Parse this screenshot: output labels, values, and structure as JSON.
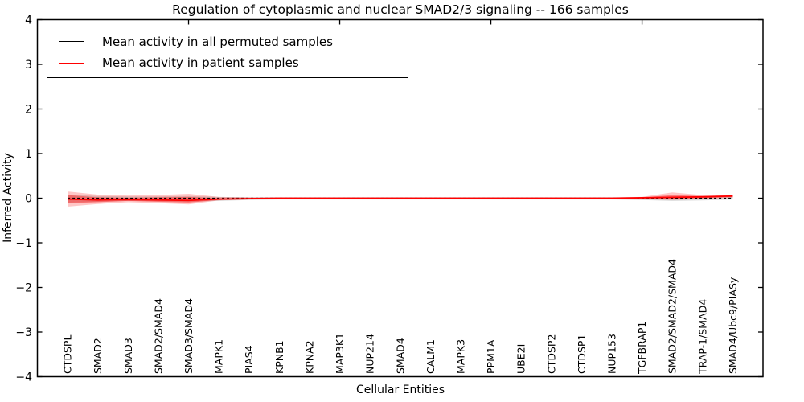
{
  "legend": {
    "items": [
      {
        "label": "Mean activity in all permuted samples",
        "color": "#000000"
      },
      {
        "label": "Mean activity in patient samples",
        "color": "#ff0000"
      }
    ]
  },
  "chart_data": {
    "type": "line",
    "title": "Regulation of cytoplasmic and nuclear SMAD2/3 signaling -- 166 samples",
    "xlabel": "Cellular Entities",
    "ylabel": "Inferred Activity",
    "xlim": [
      0,
      24
    ],
    "ylim": [
      -4,
      4
    ],
    "yticks": [
      4,
      3,
      2,
      1,
      0,
      -1,
      -2,
      -3,
      -4
    ],
    "ytick_labels": [
      "4",
      "3",
      "2",
      "1",
      "0",
      "−1",
      "−2",
      "−3",
      "−4"
    ],
    "xticks_top": [
      5,
      10,
      15,
      20
    ],
    "grid": false,
    "legend_position": "upper left",
    "categories": [
      "CTDSPL",
      "SMAD2",
      "SMAD3",
      "SMAD2/SMAD4",
      "SMAD3/SMAD4",
      "MAPK1",
      "PIAS4",
      "KPNB1",
      "KPNA2",
      "MAP3K1",
      "NUP214",
      "SMAD4",
      "CALM1",
      "MAPK3",
      "PPM1A",
      "UBE2I",
      "CTDSP2",
      "CTDSP1",
      "NUP153",
      "TGFBRAP1",
      "SMAD2/SMAD2/SMAD4",
      "TRAP-1/SMAD4",
      "SMAD4/Ubc9/PIASy"
    ],
    "series": [
      {
        "name": "Mean activity in all permuted samples",
        "color": "#000000",
        "style": "dashed",
        "values": [
          0,
          0,
          0,
          0,
          0,
          0,
          0,
          0,
          0,
          0,
          0,
          0,
          0,
          0,
          0,
          0,
          0,
          0,
          0,
          0,
          0,
          0,
          0
        ]
      },
      {
        "name": "Mean activity in patient samples",
        "color": "#ff0000",
        "style": "solid",
        "values": [
          -0.02,
          -0.04,
          -0.03,
          -0.04,
          -0.05,
          -0.02,
          -0.01,
          0,
          0,
          0,
          0,
          0,
          0,
          0,
          0,
          0,
          0,
          0,
          0,
          0.01,
          0.02,
          0.03,
          0.05
        ]
      }
    ],
    "bands": [
      {
        "name": "permuted-samples-spread",
        "color": "#999999",
        "opacity": 0.35,
        "upper": [
          0.08,
          0.05,
          0.04,
          0.04,
          0.05,
          0.03,
          0.02,
          0.02,
          0.02,
          0.02,
          0.02,
          0.02,
          0.02,
          0.02,
          0.02,
          0.02,
          0.02,
          0.02,
          0.02,
          0.02,
          0.04,
          0.04,
          0.06
        ],
        "lower": [
          -0.1,
          -0.08,
          -0.06,
          -0.07,
          -0.08,
          -0.06,
          -0.04,
          -0.03,
          -0.03,
          -0.03,
          -0.03,
          -0.03,
          -0.03,
          -0.03,
          -0.03,
          -0.03,
          -0.03,
          -0.03,
          -0.03,
          -0.04,
          -0.06,
          -0.05,
          -0.03
        ]
      },
      {
        "name": "patient-samples-spread-outer",
        "color": "#ff0000",
        "opacity": 0.22,
        "upper": [
          0.15,
          0.08,
          0.06,
          0.07,
          0.1,
          0.03,
          0.02,
          0.02,
          0.02,
          0.02,
          0.02,
          0.02,
          0.02,
          0.02,
          0.02,
          0.02,
          0.02,
          0.02,
          0.02,
          0.03,
          0.13,
          0.07,
          0.08
        ],
        "lower": [
          -0.19,
          -0.13,
          -0.09,
          -0.11,
          -0.14,
          -0.05,
          -0.03,
          -0.02,
          -0.02,
          -0.02,
          -0.02,
          -0.02,
          -0.02,
          -0.02,
          -0.02,
          -0.02,
          -0.02,
          -0.02,
          -0.02,
          -0.02,
          -0.04,
          -0.02,
          0.01
        ]
      },
      {
        "name": "patient-samples-spread-inner",
        "color": "#ff0000",
        "opacity": 0.38,
        "upper": [
          0.07,
          0.02,
          0.01,
          0.02,
          0.03,
          0,
          0,
          0.01,
          0.01,
          0.01,
          0.01,
          0.01,
          0.01,
          0.01,
          0.01,
          0.01,
          0.01,
          0.01,
          0.01,
          0.02,
          0.07,
          0.05,
          0.07
        ],
        "lower": [
          -0.11,
          -0.09,
          -0.06,
          -0.08,
          -0.1,
          -0.04,
          -0.02,
          -0.01,
          -0.01,
          -0.01,
          -0.01,
          -0.01,
          -0.01,
          -0.01,
          -0.01,
          -0.01,
          -0.01,
          -0.01,
          -0.01,
          -0.01,
          -0.02,
          0,
          0.03
        ]
      }
    ]
  }
}
